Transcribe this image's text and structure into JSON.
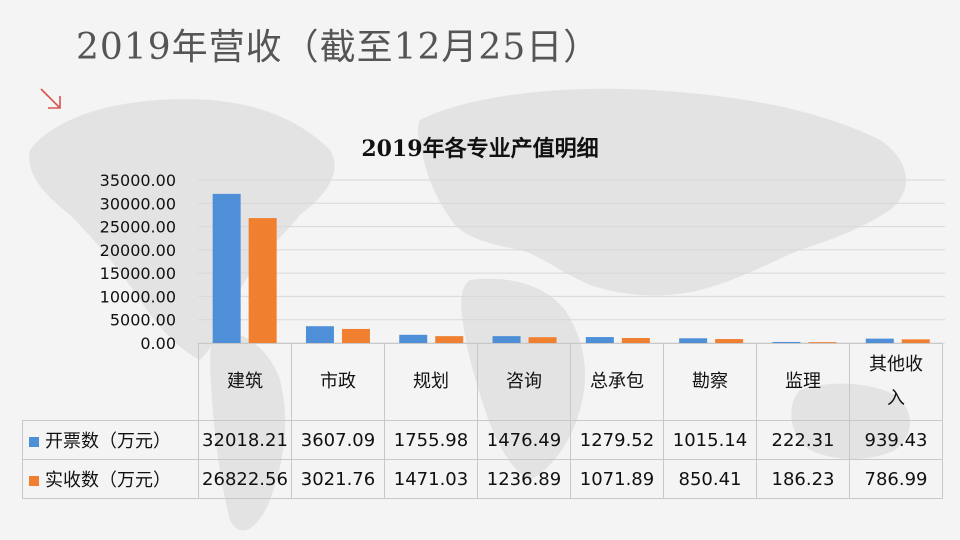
{
  "slide": {
    "title": "2019年营收（截至12月25日）"
  },
  "colors": {
    "series1": "#4f8fd8",
    "series2": "#f07f30",
    "accent_arrow": "#d9534f",
    "grid": "#d8d8d8"
  },
  "chart_data": {
    "type": "bar",
    "title": "2019年各专业产值明细",
    "categories": [
      "建筑",
      "市政",
      "规划",
      "咨询",
      "总承包",
      "勘察",
      "监理",
      "其他收入"
    ],
    "series": [
      {
        "name": "开票数（万元）",
        "values": [
          32018.21,
          3607.09,
          1755.98,
          1476.49,
          1279.52,
          1015.14,
          222.31,
          939.43
        ],
        "labels": [
          "32018.21",
          "3607.09",
          "1755.98",
          "1476.49",
          "1279.52",
          "1015.14",
          "222.31",
          "939.43"
        ]
      },
      {
        "name": "实收数（万元）",
        "values": [
          26822.56,
          3021.76,
          1471.03,
          1236.89,
          1071.89,
          850.41,
          186.23,
          786.99
        ],
        "labels": [
          "26822.56",
          "3021.76",
          "1471.03",
          "1236.89",
          "1071.89",
          "850.41",
          "186.23",
          "786.99"
        ]
      }
    ],
    "ylim": [
      0,
      35000
    ],
    "yticks": [
      "0.00",
      "5000.00",
      "10000.00",
      "15000.00",
      "20000.00",
      "25000.00",
      "30000.00",
      "35000.00"
    ],
    "grid": true,
    "legend": "data-table"
  }
}
